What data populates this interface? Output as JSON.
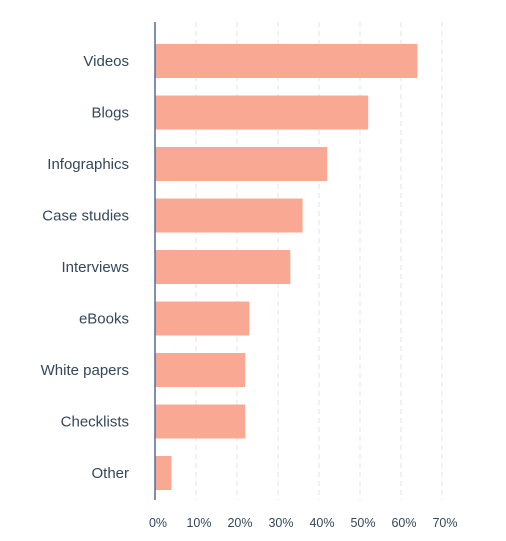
{
  "colors": {
    "bar": "#f8a893",
    "axis": "#516f90",
    "grid": "#dfe3eb",
    "text": "#33475b"
  },
  "chart_data": {
    "type": "bar",
    "orientation": "horizontal",
    "title": "",
    "xlabel": "",
    "ylabel": "",
    "categories": [
      "Videos",
      "Blogs",
      "Infographics",
      "Case studies",
      "Interviews",
      "eBooks",
      "White papers",
      "Checklists",
      "Other"
    ],
    "values": [
      64,
      52,
      42,
      36,
      33,
      23,
      22,
      22,
      4
    ],
    "xlim": [
      0,
      70
    ],
    "x_ticks": [
      "0%",
      "10%",
      "20%",
      "30%",
      "40%",
      "50%",
      "60%",
      "70%"
    ],
    "grid": "vertical dashed",
    "legend": "none"
  }
}
